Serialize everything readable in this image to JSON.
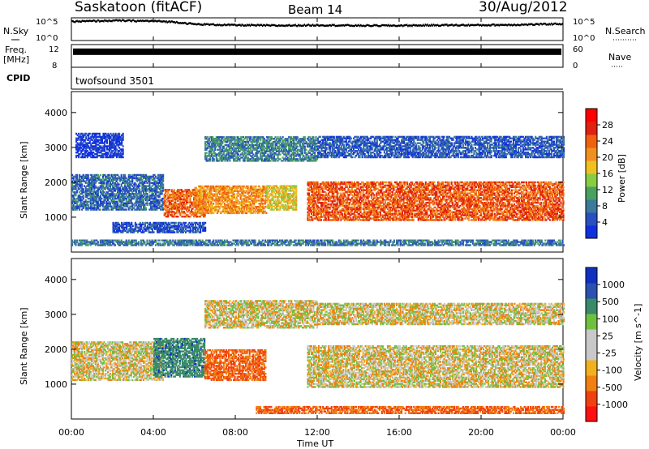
{
  "header": {
    "title": "Saskatoon (fitACF)",
    "beam": "Beam 14",
    "date": "30/Aug/2012"
  },
  "top_panels": {
    "nsky_label": "N.Sky",
    "nsearch_label": "N.Search",
    "noise_ticks_left": [
      "10^5",
      "10^0"
    ],
    "noise_ticks_right": [
      "10^5",
      "10^0"
    ],
    "freq_label": "Freq.",
    "freq_unit": "[MHz]",
    "freq_ticks": [
      "12",
      "8"
    ],
    "nave_label": "Nave",
    "nave_ticks": [
      "60",
      "0"
    ],
    "cpid_label": "CPID",
    "cpid_value": "twofsound 3501"
  },
  "colors": {
    "power_scale": [
      "#1030e0",
      "#2a4fc0",
      "#3a7a9a",
      "#4aa060",
      "#88cc44",
      "#f0c020",
      "#f09020",
      "#f06010",
      "#e02010",
      "#ff0000"
    ],
    "velocity_scale": [
      "#ff1010",
      "#f04010",
      "#f08010",
      "#f0b020",
      "#c8c8c8",
      "#c8c8c8",
      "#70c040",
      "#3a8a6a",
      "#2a50b0",
      "#1030c0"
    ]
  },
  "chart_data": [
    {
      "type": "heatmap",
      "name": "power",
      "ylabel": "Slant Range [km]",
      "yticks": [
        "1000",
        "2000",
        "3000",
        "4000"
      ],
      "ylim": [
        0,
        4600
      ],
      "colorbar_label": "Power [dB]",
      "colorbar_ticks": [
        "4",
        "8",
        "12",
        "16",
        "20",
        "24",
        "28"
      ],
      "xlim": [
        0,
        24
      ],
      "xticks": [
        "00:00",
        "04:00",
        "08:00",
        "12:00",
        "16:00",
        "20:00",
        "00:00"
      ],
      "regions": [
        {
          "t0": 0.0,
          "t1": 4.5,
          "r0": 1200,
          "r1": 2200,
          "level": 8
        },
        {
          "t0": 0.2,
          "t1": 2.5,
          "r0": 2700,
          "r1": 3400,
          "level": 4
        },
        {
          "t0": 2.0,
          "t1": 6.5,
          "r0": 550,
          "r1": 850,
          "level": 6
        },
        {
          "t0": 4.5,
          "t1": 6.5,
          "r0": 1000,
          "r1": 1800,
          "level": 24
        },
        {
          "t0": 6.0,
          "t1": 9.5,
          "r0": 1100,
          "r1": 1900,
          "level": 22
        },
        {
          "t0": 9.5,
          "t1": 11.0,
          "r0": 1200,
          "r1": 1900,
          "level": 18
        },
        {
          "t0": 6.5,
          "t1": 12.0,
          "r0": 2600,
          "r1": 3300,
          "level": 10
        },
        {
          "t0": 11.5,
          "t1": 24.0,
          "r0": 900,
          "r1": 2000,
          "level": 25
        },
        {
          "t0": 12.0,
          "t1": 24.0,
          "r0": 2700,
          "r1": 3300,
          "level": 7
        },
        {
          "t0": 0.0,
          "t1": 24.0,
          "r0": 180,
          "r1": 350,
          "level": 9
        }
      ]
    },
    {
      "type": "heatmap",
      "name": "velocity",
      "ylabel": "Slant Range [km]",
      "yticks": [
        "1000",
        "2000",
        "3000",
        "4000"
      ],
      "ylim": [
        0,
        4600
      ],
      "colorbar_label": "Velocity [m s^-1]",
      "colorbar_ticks": [
        "1000",
        "500",
        "100",
        "25",
        "-25",
        "-100",
        "-500",
        "-1000"
      ],
      "xlim": [
        0,
        24
      ],
      "xlabel": "Time UT",
      "xticks": [
        "00:00",
        "04:00",
        "08:00",
        "12:00",
        "16:00",
        "20:00",
        "00:00"
      ],
      "regions": [
        {
          "t0": 0.0,
          "t1": 4.5,
          "r0": 1100,
          "r1": 2200,
          "level": 0
        },
        {
          "t0": 4.0,
          "t1": 6.5,
          "r0": 1200,
          "r1": 2300,
          "level": 600
        },
        {
          "t0": 6.5,
          "t1": 9.5,
          "r0": 1100,
          "r1": 2000,
          "level": -300
        },
        {
          "t0": 6.5,
          "t1": 12.0,
          "r0": 2600,
          "r1": 3400,
          "level": 0
        },
        {
          "t0": 11.5,
          "t1": 24.0,
          "r0": 900,
          "r1": 2100,
          "level": 0
        },
        {
          "t0": 12.0,
          "t1": 24.0,
          "r0": 2700,
          "r1": 3300,
          "level": 0
        },
        {
          "t0": 9.0,
          "t1": 24.0,
          "r0": 150,
          "r1": 350,
          "level": -300
        }
      ]
    },
    {
      "type": "line",
      "name": "noise",
      "series": [
        {
          "x": [
            0,
            2,
            4,
            5,
            6,
            8,
            10,
            12,
            14,
            16,
            18,
            20,
            22,
            24
          ],
          "y": [
            4.4,
            4.6,
            4.5,
            4.3,
            3.8,
            3.6,
            3.5,
            3.6,
            3.5,
            3.5,
            3.6,
            3.6,
            3.7,
            3.9
          ]
        }
      ]
    },
    {
      "type": "line",
      "name": "frequency",
      "series": [
        {
          "x": [
            0,
            24
          ],
          "y": [
            10.6,
            10.6
          ]
        }
      ]
    }
  ]
}
